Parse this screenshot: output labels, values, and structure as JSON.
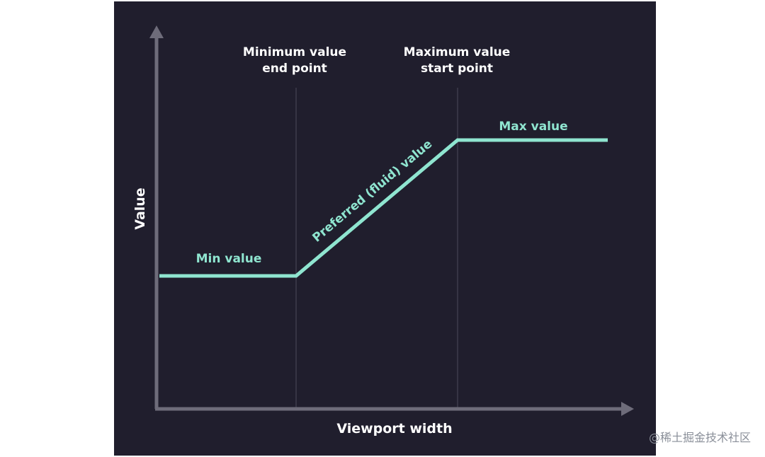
{
  "diagram": {
    "background": "#201e2d",
    "axis_color": "#6e6c7a",
    "curve_color": "#8fe5d0",
    "divider_color": "#4d4b5a",
    "label_color": "#ffffff",
    "axes": {
      "y_label": "Value",
      "x_label": "Viewport width"
    },
    "markers": {
      "min_end_line1": "Minimum value",
      "min_end_line2": "end point",
      "max_start_line1": "Maximum value",
      "max_start_line2": "start point"
    },
    "segments": {
      "min": "Min value",
      "preferred": "Preferred (fluid) value",
      "max": "Max value"
    }
  },
  "watermark": {
    "text": "@稀土掘金技术社区"
  }
}
